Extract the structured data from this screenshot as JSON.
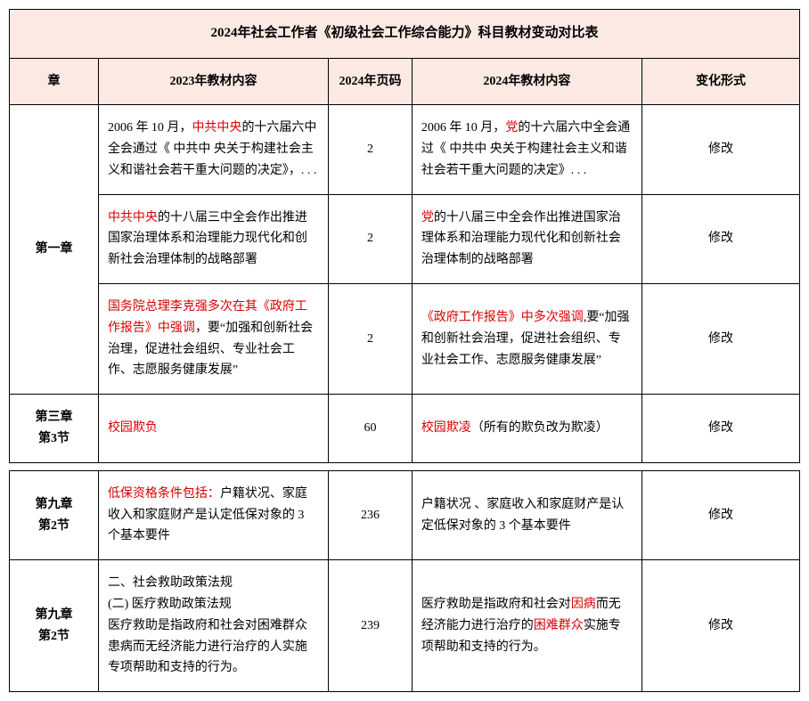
{
  "title": "2024年社会工作者《初级社会工作综合能力》科目教材变动对比表",
  "headers": {
    "chapter": "章",
    "content2023": "2023年教材内容",
    "page2024": "2024年页码",
    "content2024": "2024年教材内容",
    "changeType": "变化形式"
  },
  "chapterLabels": {
    "ch1": "第一章",
    "ch3s3a": "第三章",
    "ch3s3b": "第3节",
    "ch9s2a": "第九章",
    "ch9s2b": "第2节"
  },
  "rows": {
    "r1": {
      "page": "2",
      "change": "修改",
      "c2023_pre": "2006 年 10 月，",
      "c2023_hl": "中共中央",
      "c2023_post": "的十六届六中全会通过《 中共中  央关于构建社会主义和谐社会若干重大问题的决定》，. . .",
      "c2024_pre": "2006 年 10 月，",
      "c2024_hl": "党",
      "c2024_post": "的十六届六中全会通过《 中共中  央关于构建社会主义和谐社会若干重大问题的决定》. . ."
    },
    "r2": {
      "page": "2",
      "change": "修改",
      "c2023_hl": "中共中央",
      "c2023_post": "的十八届三中全会作出推进国家治理体系和治理能力现代化和创新社会治理体制的战略部署",
      "c2024_hl": "党",
      "c2024_post": "的十八届三中全会作出推进国家治理体系和治理能力现代化和创新社会治理体制的战略部署"
    },
    "r3": {
      "page": "2",
      "change": "修改",
      "c2023_hl": "国务院总理李克强多次在其《政府工作报告》中强调",
      "c2023_post": "，要“加强和创新社会治理，促进社会组织、专业社会工作、志愿服务健康发展”",
      "c2024_hl": "《政府工作报告》中多次强调",
      "c2024_post": ",要“加强和创新社会治理，促进社会组织、专业社会工作、志愿服务健康发展”"
    },
    "r4": {
      "page": "60",
      "change": "修改",
      "c2023_hl": "校园欺负",
      "c2024_hl": "校园欺凌",
      "c2024_post": "（所有的欺负改为欺凌）"
    },
    "r5": {
      "page": "236",
      "change": "修改",
      "c2023_hl": "低保资格条件包括：",
      "c2023_post": "户籍状况、家庭收入和家庭财产是认定低保对象的 3 个基本要件",
      "c2024": "户籍状况 、家庭收入和家庭财产是认定低保对象的 3 个基本要件"
    },
    "r6": {
      "page": "239",
      "change": "修改",
      "c2023": "二、社会救助政策法规\n(二) 医疗救助政策法规\n医疗救助是指政府和社会对困难群众患病而无经济能力进行治疗的人实施专项帮助和支持的行为。",
      "c2024_pre": "医疗救助是指政府和社会对",
      "c2024_hl1": "因病",
      "c2024_mid": "而无经济能力进行治疗的",
      "c2024_hl2": "困难群众",
      "c2024_post": "实施专项帮助和支持的行为。"
    }
  }
}
